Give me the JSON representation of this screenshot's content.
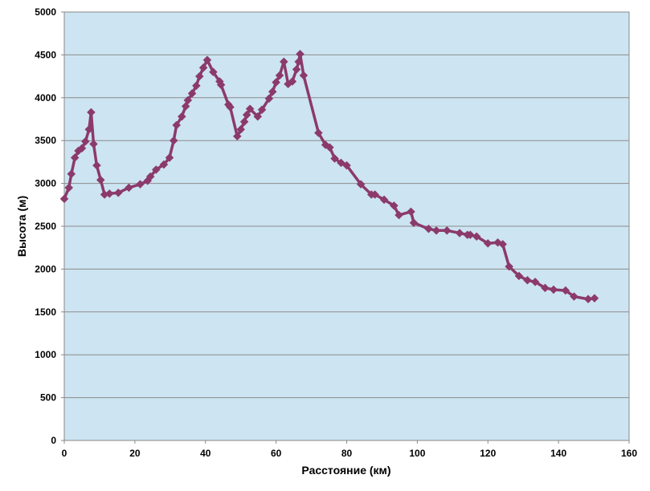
{
  "chart_data": {
    "type": "line",
    "title": "",
    "xlabel": "Расстояние (км)",
    "ylabel": "Высота (м)",
    "xlim": [
      0,
      160
    ],
    "ylim": [
      0,
      5000
    ],
    "x_ticks": [
      "0",
      "20",
      "40",
      "60",
      "80",
      "100",
      "120",
      "140",
      "160"
    ],
    "y_ticks": [
      "0",
      "500",
      "1000",
      "1500",
      "2000",
      "2500",
      "3000",
      "3500",
      "4000",
      "4500",
      "5000"
    ],
    "grid": "horizontal",
    "legend": "none",
    "series": [
      {
        "color": "#8b3a6b",
        "marker": "diamond",
        "x": [
          0,
          1.3,
          2,
          3,
          4,
          5,
          6,
          7,
          7.6,
          8.3,
          9.2,
          10.3,
          11.4,
          12.8,
          15.3,
          18.3,
          21.5,
          23.6,
          24.4,
          26,
          28.2,
          29.8,
          31,
          31.8,
          33.3,
          34.4,
          35,
          36.2,
          37.4,
          38.3,
          39.4,
          40.5,
          42.2,
          44,
          44.4,
          46.5,
          47,
          49,
          50,
          51,
          51.7,
          52.6,
          54.8,
          56,
          58,
          59,
          60,
          61,
          62.2,
          63.4,
          64.6,
          65.8,
          66.4,
          66.8,
          67.8,
          72,
          74,
          75.2,
          76.6,
          78.4,
          80,
          84,
          87,
          88,
          90.6,
          93.4,
          94.8,
          98.2,
          99,
          103.2,
          105.4,
          108.4,
          112,
          114.2,
          115,
          116.8,
          120,
          122.8,
          124.2,
          126,
          128.8,
          131.2,
          133.4,
          136.2,
          138.6,
          142,
          144.4,
          148.4,
          150.2
        ],
        "y": [
          2820,
          2950,
          3110,
          3300,
          3380,
          3410,
          3490,
          3630,
          3830,
          3460,
          3210,
          3040,
          2870,
          2880,
          2890,
          2950,
          2990,
          3030,
          3080,
          3160,
          3220,
          3300,
          3500,
          3680,
          3780,
          3900,
          3970,
          4050,
          4140,
          4250,
          4350,
          4440,
          4300,
          4190,
          4150,
          3920,
          3890,
          3550,
          3630,
          3720,
          3800,
          3870,
          3780,
          3860,
          3990,
          4070,
          4180,
          4260,
          4420,
          4160,
          4190,
          4330,
          4420,
          4510,
          4260,
          3590,
          3450,
          3420,
          3290,
          3240,
          3210,
          2990,
          2870,
          2870,
          2810,
          2740,
          2630,
          2670,
          2540,
          2470,
          2450,
          2450,
          2420,
          2400,
          2400,
          2380,
          2300,
          2310,
          2290,
          2030,
          1920,
          1870,
          1850,
          1780,
          1760,
          1750,
          1680,
          1650,
          1660
        ]
      }
    ]
  }
}
